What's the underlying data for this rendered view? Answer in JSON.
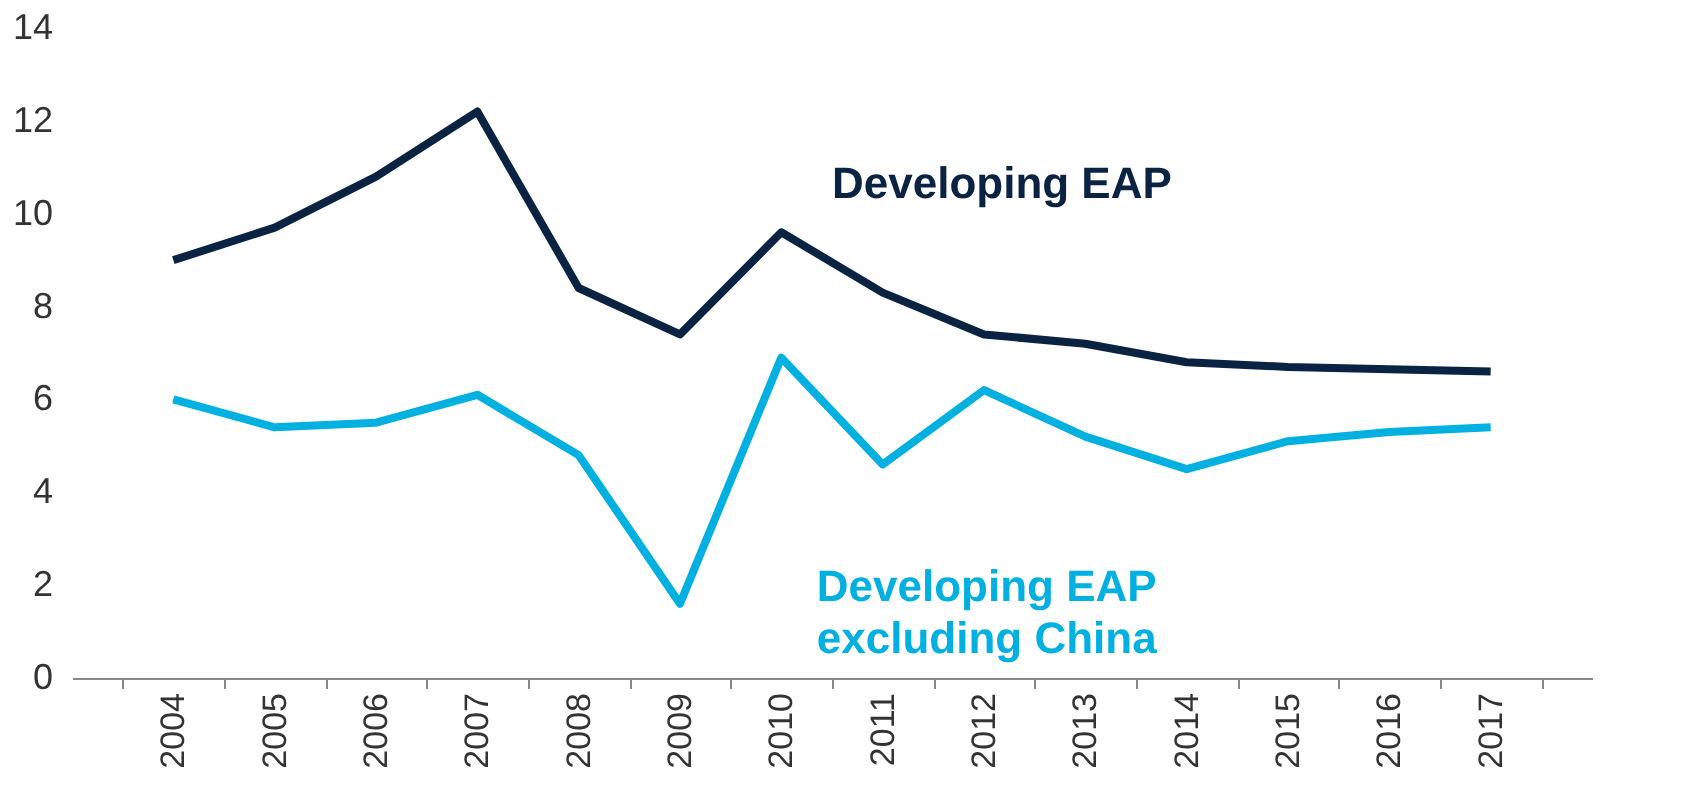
{
  "chart_data": {
    "type": "line",
    "categories": [
      "2004",
      "2005",
      "2006",
      "2007",
      "2008",
      "2009",
      "2010",
      "2011",
      "2012",
      "2013",
      "2014",
      "2015",
      "2016",
      "2017"
    ],
    "ylim": [
      0,
      14
    ],
    "yticks": [
      0,
      2,
      4,
      6,
      8,
      10,
      12,
      14
    ],
    "grid": false,
    "marker": "none",
    "line_style": "solid",
    "series": [
      {
        "name": "Developing EAP",
        "color": "#0b2343",
        "values": [
          9.0,
          9.7,
          10.8,
          12.2,
          8.4,
          7.4,
          9.6,
          8.3,
          7.4,
          7.2,
          6.8,
          6.7,
          6.65,
          6.6
        ]
      },
      {
        "name": "Developing EAP\nexcluding China",
        "color": "#00b0e0",
        "values": [
          6.0,
          5.4,
          5.5,
          6.1,
          4.8,
          1.6,
          6.9,
          4.6,
          6.2,
          5.2,
          4.5,
          5.1,
          5.3,
          5.4
        ]
      }
    ]
  }
}
